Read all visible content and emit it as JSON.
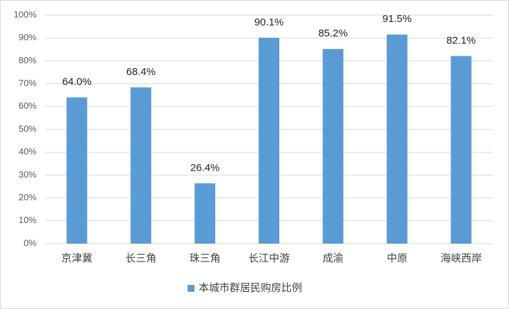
{
  "chart_data": {
    "type": "bar",
    "categories": [
      "京津冀",
      "长三角",
      "珠三角",
      "长江中游",
      "成渝",
      "中原",
      "海峡西岸"
    ],
    "series": [
      {
        "name": "本城市群居民购房比例",
        "color": "#5b9bd5",
        "values": [
          64.0,
          68.4,
          26.4,
          90.1,
          85.2,
          91.5,
          82.1
        ],
        "value_labels": [
          "64.0%",
          "68.4%",
          "26.4%",
          "90.1%",
          "85.2%",
          "91.5%",
          "82.1%"
        ]
      }
    ],
    "ylim": [
      0,
      100
    ],
    "yticks": [
      {
        "value": 0,
        "label": "0%"
      },
      {
        "value": 10,
        "label": "10%"
      },
      {
        "value": 20,
        "label": "20%"
      },
      {
        "value": 30,
        "label": "30%"
      },
      {
        "value": 40,
        "label": "40%"
      },
      {
        "value": 50,
        "label": "50%"
      },
      {
        "value": 60,
        "label": "60%"
      },
      {
        "value": 70,
        "label": "70%"
      },
      {
        "value": 80,
        "label": "80%"
      },
      {
        "value": 90,
        "label": "90%"
      },
      {
        "value": 100,
        "label": "100%"
      }
    ],
    "grid": true,
    "legend": "bottom"
  }
}
